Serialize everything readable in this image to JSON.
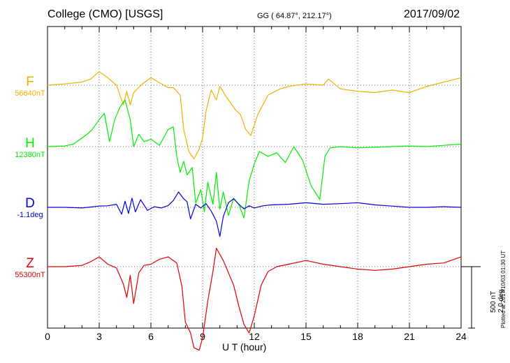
{
  "header": {
    "title": "College (CMO)  [USGS]",
    "coords": "GG ( 64.87°, 212.17°)",
    "date": "2017/09/02"
  },
  "scale_note": {
    "line1": "500 nT",
    "line2": "2.0 deg"
  },
  "plotted_note": "Plotted at 2017/10/03 01:30 UT",
  "colors": {
    "F": "#f0b000",
    "H": "#00ee00",
    "D": "#0000e0",
    "Z": "#e00000"
  },
  "chart_data": {
    "type": "line",
    "xlabel": "U T (hour)",
    "xlim": [
      0,
      24
    ],
    "xticks": [
      "0",
      "3",
      "6",
      "9",
      "12",
      "15",
      "18",
      "21",
      "24"
    ],
    "grid": true,
    "y_scale_note": "500 nT / 2.0 deg per scale bar",
    "series": [
      {
        "name": "F",
        "baseline_label": "56640nT",
        "baseline": 56640,
        "unit": "nT",
        "x": [
          0,
          1,
          2,
          2.5,
          3,
          3.5,
          4,
          4.4,
          4.6,
          4.8,
          5,
          5.5,
          6,
          6.5,
          7,
          7.3,
          7.7,
          7.9,
          8.2,
          8.5,
          8.8,
          9.0,
          9.2,
          9.5,
          9.8,
          10.0,
          10.3,
          10.6,
          10.9,
          11.2,
          11.5,
          11.8,
          12.2,
          12.8,
          13.5,
          14,
          15,
          16,
          16.3,
          17,
          18,
          19,
          20,
          21,
          22,
          23,
          24
        ],
        "values": [
          56640,
          56650,
          56665,
          56690,
          56750,
          56700,
          56640,
          56480,
          56590,
          56480,
          56580,
          56650,
          56700,
          56660,
          56620,
          56620,
          56560,
          56280,
          56100,
          56040,
          56120,
          56210,
          56430,
          56600,
          56520,
          56630,
          56560,
          56500,
          56440,
          56400,
          56280,
          56230,
          56400,
          56560,
          56610,
          56630,
          56650,
          56640,
          56690,
          56610,
          56590,
          56580,
          56600,
          56580,
          56630,
          56665,
          56700
        ]
      },
      {
        "name": "H",
        "baseline_label": "12380nT",
        "baseline": 12380,
        "unit": "nT",
        "x": [
          0,
          1,
          1.5,
          2,
          2.3,
          2.6,
          3,
          3.3,
          3.6,
          3.9,
          4.2,
          4.5,
          4.8,
          5.0,
          5.3,
          5.6,
          6,
          6.5,
          7,
          7.3,
          7.5,
          7.7,
          7.9,
          8.1,
          8.4,
          8.6,
          8.9,
          9.1,
          9.3,
          9.6,
          9.8,
          10.0,
          10.2,
          10.5,
          10.8,
          11.1,
          11.4,
          11.7,
          12.0,
          12.3,
          12.8,
          13.3,
          13.8,
          14.3,
          14.8,
          15.3,
          15.8,
          16.1,
          16.4,
          17,
          18,
          19,
          20,
          21,
          22,
          23,
          24
        ],
        "values": [
          12380,
          12385,
          12400,
          12450,
          12480,
          12520,
          12600,
          12650,
          12420,
          12600,
          12700,
          12760,
          12600,
          12380,
          12480,
          12420,
          12440,
          12390,
          12520,
          12540,
          12300,
          12170,
          12260,
          12150,
          12210,
          11920,
          12030,
          11850,
          12090,
          11910,
          12170,
          11870,
          12010,
          11820,
          11960,
          11910,
          11800,
          12100,
          12240,
          12340,
          12300,
          12330,
          12250,
          12380,
          12270,
          12060,
          11950,
          12300,
          12370,
          12380,
          12370,
          12375,
          12380,
          12385,
          12380,
          12390,
          12400
        ]
      },
      {
        "name": "D",
        "baseline_label": "-1.1deg",
        "baseline": -1.1,
        "unit": "deg",
        "x": [
          0,
          1,
          2,
          3,
          3.5,
          4,
          4.3,
          4.5,
          4.7,
          4.9,
          5.1,
          5.4,
          5.8,
          6.2,
          6.6,
          7,
          7.3,
          7.6,
          7.9,
          8.1,
          8.3,
          8.6,
          8.9,
          9.2,
          9.5,
          9.8,
          10.0,
          10.2,
          10.5,
          10.8,
          11.1,
          11.4,
          11.7,
          12,
          12.5,
          13,
          14,
          15,
          16,
          17,
          18,
          19,
          20,
          21,
          22,
          23,
          24
        ],
        "values": [
          -1.1,
          -1.1,
          -1.12,
          -1.06,
          -1.05,
          -1.0,
          -1.32,
          -0.9,
          -1.3,
          -0.8,
          -1.25,
          -0.85,
          -1.2,
          -1.08,
          -1.12,
          -1.04,
          -0.88,
          -0.6,
          -0.82,
          -0.92,
          -1.48,
          -1.0,
          -1.12,
          -0.98,
          -1.22,
          -1.55,
          -2.05,
          -1.4,
          -0.95,
          -0.82,
          -1.0,
          -1.15,
          -1.05,
          -1.12,
          -1.05,
          -1.02,
          -1.0,
          -0.95,
          -1.0,
          -0.98,
          -0.95,
          -1.02,
          -1.06,
          -1.1,
          -1.1,
          -1.08,
          -1.1
        ]
      },
      {
        "name": "Z",
        "baseline_label": "55300nT",
        "baseline": 55300,
        "unit": "nT",
        "x": [
          0,
          1,
          2,
          2.5,
          3,
          3.5,
          4,
          4.4,
          4.6,
          4.8,
          5.0,
          5.3,
          5.6,
          6,
          6.5,
          7,
          7.5,
          7.8,
          8.0,
          8.3,
          8.5,
          8.8,
          9.0,
          9.3,
          9.6,
          9.8,
          10.0,
          10.2,
          10.5,
          10.8,
          11.1,
          11.4,
          11.7,
          12.0,
          12.4,
          12.8,
          13.3,
          14,
          15,
          16,
          17,
          18,
          19,
          20,
          21,
          22,
          23,
          24
        ],
        "values": [
          55300,
          55300,
          55310,
          55340,
          55380,
          55320,
          55290,
          55160,
          55050,
          55230,
          55000,
          55250,
          55310,
          55320,
          55360,
          55380,
          55330,
          55140,
          54850,
          54760,
          54640,
          54620,
          54720,
          55020,
          55260,
          55450,
          55400,
          55350,
          55250,
          55150,
          54980,
          54830,
          54760,
          54900,
          55150,
          55260,
          55300,
          55320,
          55350,
          55320,
          55300,
          55280,
          55270,
          55280,
          55300,
          55320,
          55330,
          55380
        ]
      }
    ]
  }
}
